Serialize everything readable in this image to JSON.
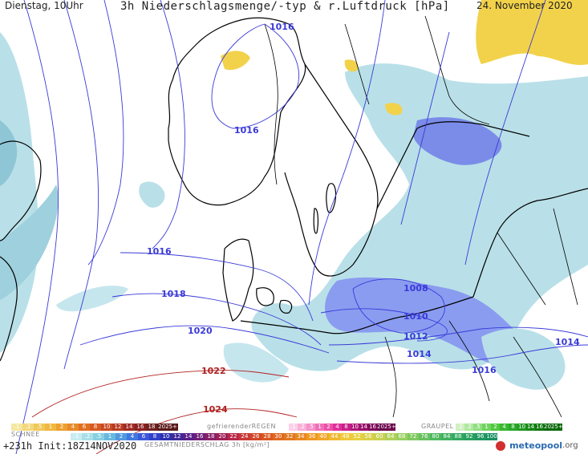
{
  "header": {
    "day_time": "Dienstag, 10Uhr",
    "title": "3h Niederschlagsmenge/-typ & r.Luftdruck [hPa]",
    "date": "24. November 2020"
  },
  "isobars": {
    "a": "1016",
    "b": "1016",
    "c": "1016",
    "d": "1018",
    "e": "1020",
    "f": "1022",
    "g": "1024",
    "h": "1008",
    "i": "1010",
    "j": "1012",
    "k": "1014",
    "l": "1016",
    "m": "1014"
  },
  "legend": {
    "snow_label": "SCHNEE",
    "freezing_rain_label": "gefrierenderREGEN",
    "graupel_label": "GRAUPEL",
    "total_label": "GESAMTNIEDERSCHLAG 3h [kg/m²]",
    "snow_values": [
      ".1",
      ".2",
      ".5",
      "1",
      "2",
      "4",
      "6",
      "8",
      "10",
      "12",
      "14",
      "16",
      "18",
      "2025+"
    ],
    "fzra_values": [
      ".1",
      ".2",
      ".5",
      "1",
      "2",
      "4",
      "8",
      "10",
      "14",
      "16",
      "2025+"
    ],
    "graupel_values": [
      ".1",
      ".2",
      ".5",
      "1",
      "2",
      "4",
      "8",
      "10",
      "14",
      "16",
      "2025+"
    ],
    "total_values": [
      ".1",
      ".2",
      ".5",
      "1",
      "2",
      "4",
      "6",
      "8",
      "10",
      "12",
      "14",
      "16",
      "18",
      "20",
      "22",
      "24",
      "26",
      "28",
      "30",
      "32",
      "34",
      "36",
      "40",
      "44",
      "48",
      "52",
      "56",
      "60",
      "64",
      "68",
      "72",
      "76",
      "80",
      "84",
      "88",
      "92",
      "96",
      "100"
    ]
  },
  "footer": {
    "run": "+231h Init:18Z14NOV2020",
    "brand": "meteopool",
    "brand_suffix": ".org"
  },
  "colors": {
    "isobar_blue": "#3a3ad8",
    "isobar_red": "#b02020",
    "sea": "#ffffff",
    "rain_light": "#b9e0e8",
    "rain_mid": "#8fc6d6",
    "rain_blue": "#7a8ce8",
    "snow_yellow": "#f2d24a",
    "brand_green": "#2a9d2a"
  }
}
